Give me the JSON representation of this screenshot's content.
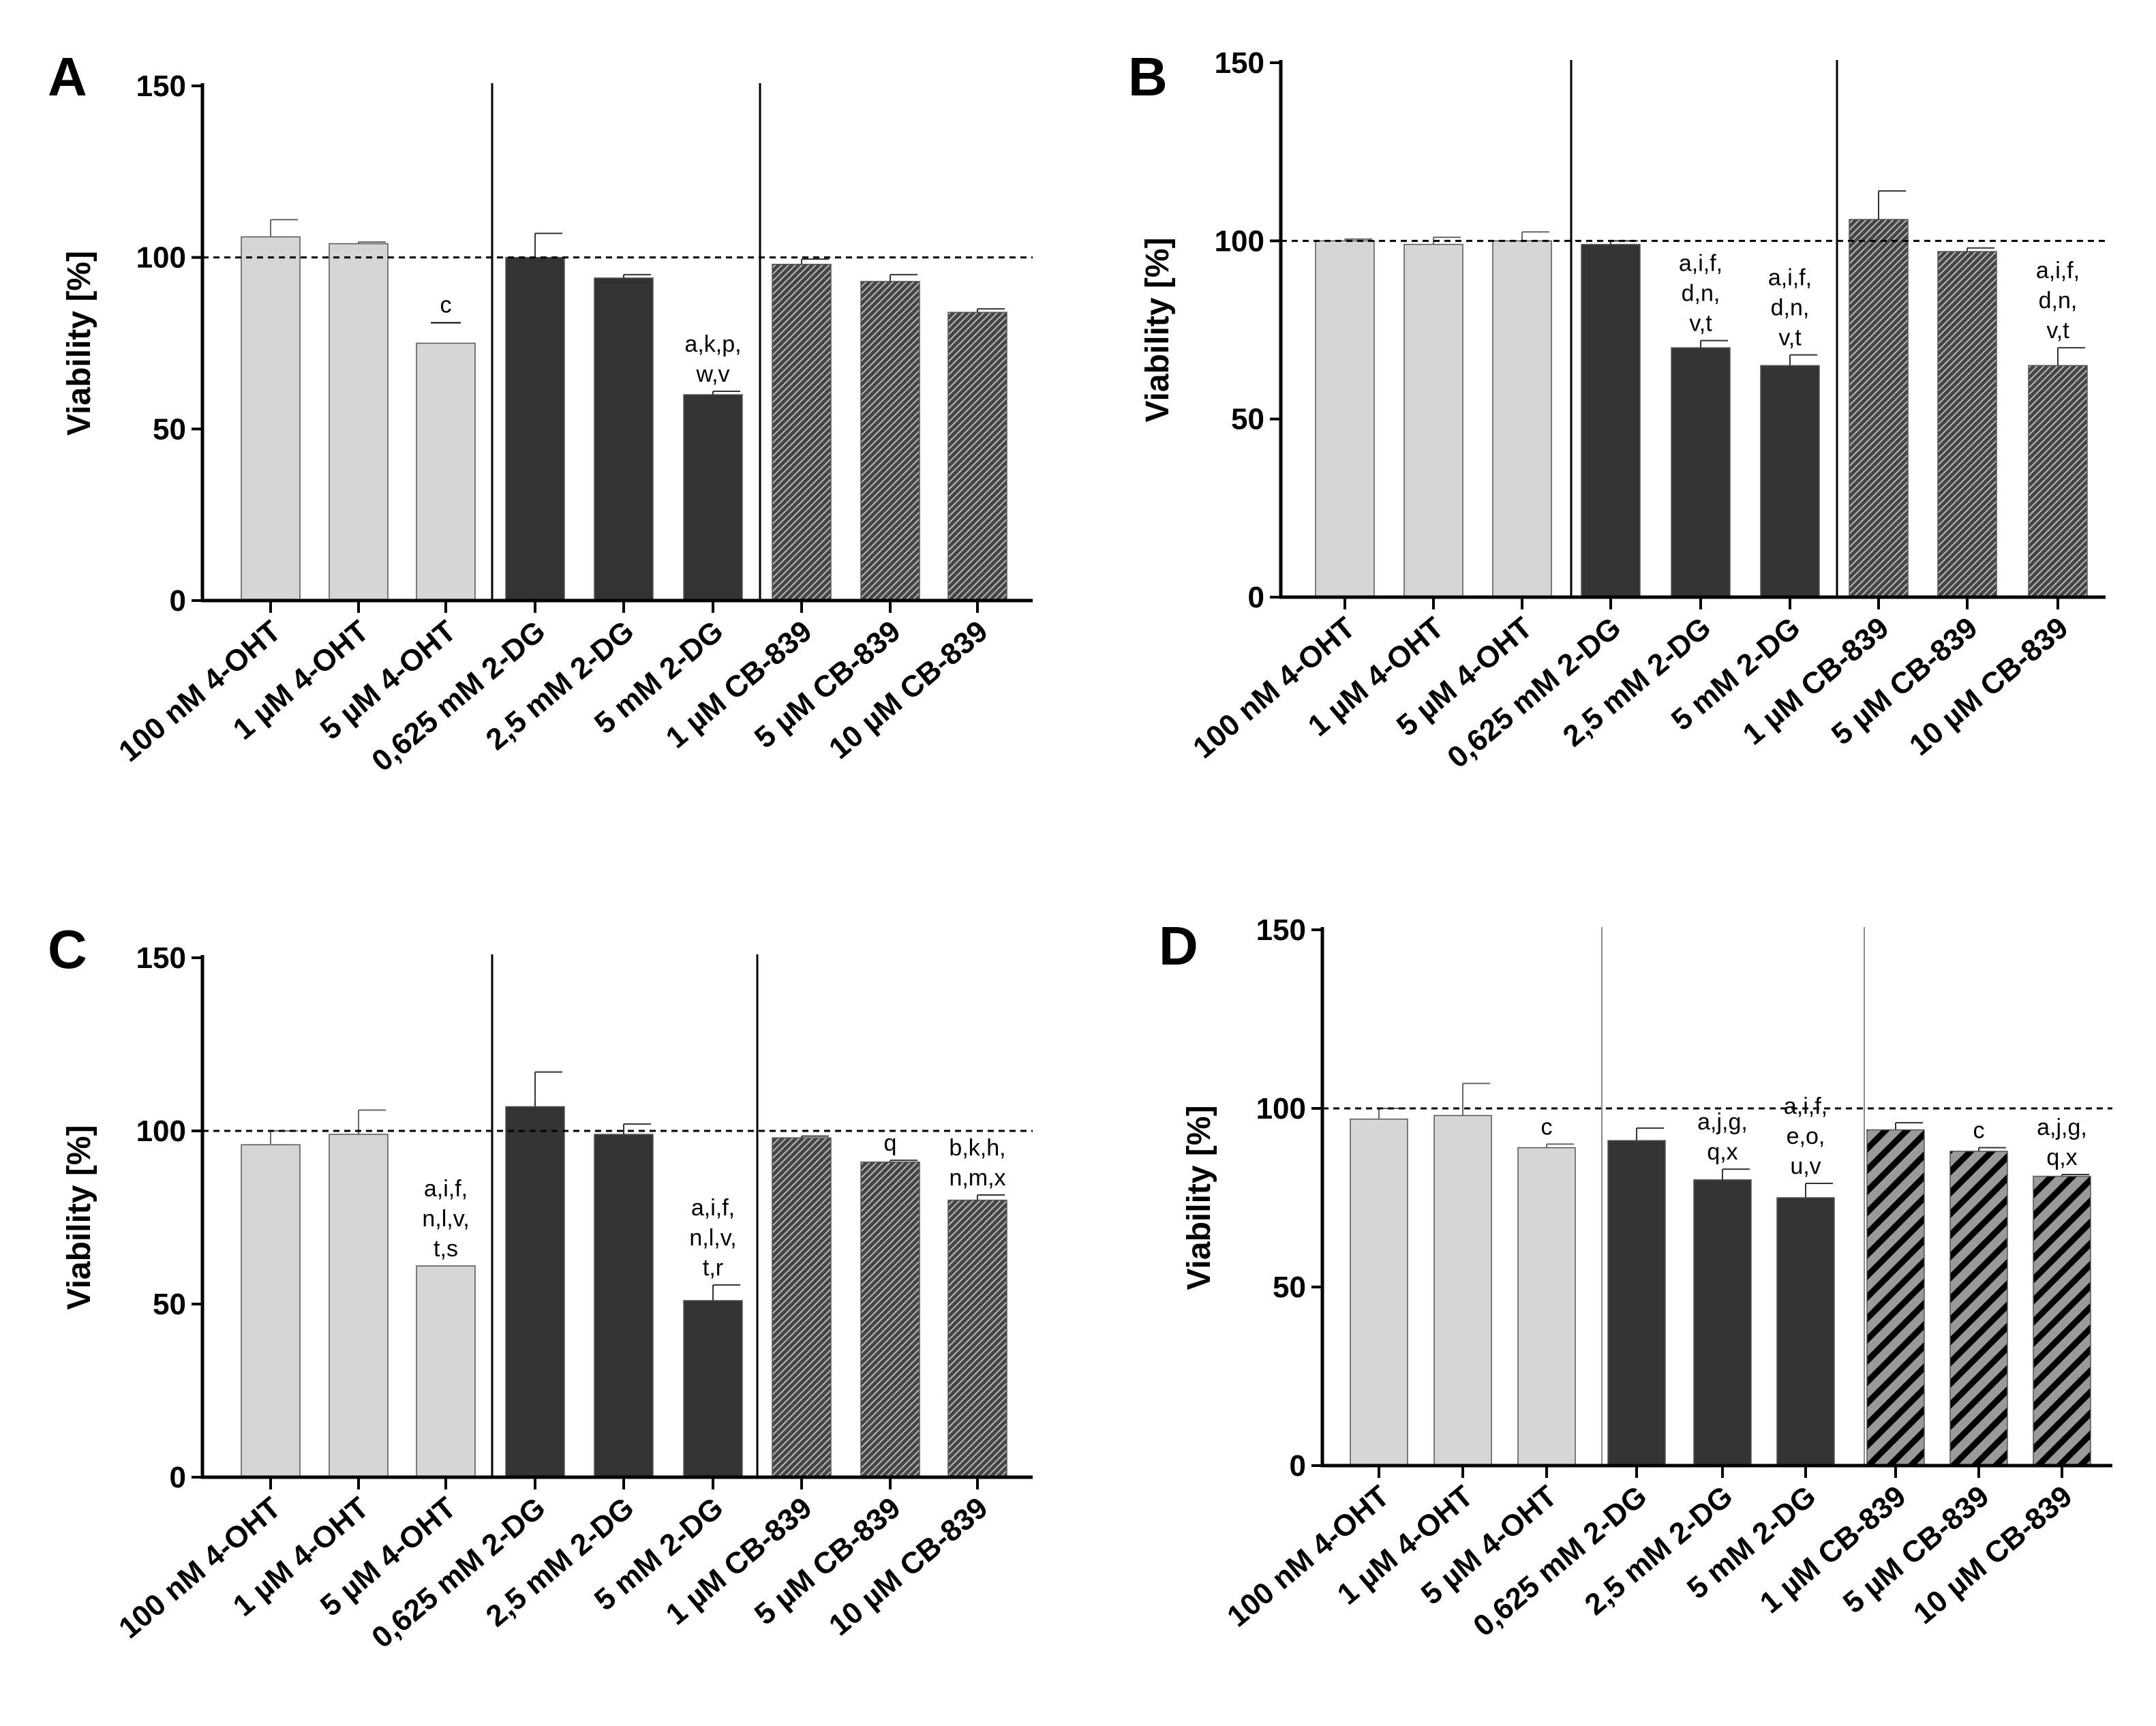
{
  "figure": {
    "colors": {
      "light": "#d6d6d6",
      "dark": "#333333",
      "hatch_bg_bc": "#454545",
      "hatch_line_bc": "#b7b7b7",
      "hatch_bg_d": "#9a9a9a",
      "hatch_line_d": "#000000",
      "axis": "#000000"
    }
  },
  "chart_data": [
    {
      "panel": "A",
      "type": "bar",
      "ylabel": "Viability [%]",
      "ylim": [
        0,
        150
      ],
      "yticks": [
        "0",
        "50",
        "100",
        "150"
      ],
      "reference_line": 100,
      "categories": [
        "100 nM 4-OHT",
        "1 µM 4-OHT",
        "5 µM 4-OHT",
        "0,625 mM 2-DG",
        "2,5 mM 2-DG",
        "5 mM 2-DG",
        "1 µM CB-839",
        "5 µM CB-839",
        "10 µM CB-839"
      ],
      "groups": [
        "4-OHT",
        "4-OHT",
        "4-OHT",
        "2-DG",
        "2-DG",
        "2-DG",
        "CB-839",
        "CB-839",
        "CB-839"
      ],
      "values": [
        106,
        104,
        75,
        100,
        94,
        60,
        98,
        93,
        84
      ],
      "errors": [
        5,
        0.5,
        0,
        7,
        1,
        1,
        1.5,
        2,
        1
      ],
      "annotations": [
        [],
        [],
        [
          "c"
        ],
        [],
        [],
        [
          "a,k,p,",
          "w,v"
        ],
        [],
        [],
        []
      ],
      "annotation_bars": [
        false,
        false,
        true,
        false,
        false,
        false,
        false,
        false,
        false
      ]
    },
    {
      "panel": "B",
      "type": "bar",
      "ylabel": "Viability [%]",
      "ylim": [
        0,
        150
      ],
      "yticks": [
        "0",
        "50",
        "100",
        "150"
      ],
      "reference_line": 100,
      "categories": [
        "100 nM 4-OHT",
        "1 µM 4-OHT",
        "5 µM 4-OHT",
        "0,625 mM 2-DG",
        "2,5 mM 2-DG",
        "5 mM 2-DG",
        "1 µM CB-839",
        "5 µM CB-839",
        "10 µM CB-839"
      ],
      "groups": [
        "4-OHT",
        "4-OHT",
        "4-OHT",
        "2-DG",
        "2-DG",
        "2-DG",
        "CB-839",
        "CB-839",
        "CB-839"
      ],
      "values": [
        100,
        99,
        100,
        99,
        70,
        65,
        106,
        97,
        65
      ],
      "errors": [
        0.5,
        2,
        2.5,
        1,
        2,
        3,
        8,
        1,
        5
      ],
      "annotations": [
        [],
        [],
        [],
        [],
        [
          "a,i,f,",
          "d,n,",
          "v,t"
        ],
        [
          "a,i,f,",
          "d,n,",
          "v,t"
        ],
        [],
        [],
        [
          "a,i,f,",
          "d,n,",
          "v,t"
        ]
      ],
      "annotation_bars": [
        false,
        false,
        false,
        false,
        false,
        false,
        false,
        false,
        false
      ]
    },
    {
      "panel": "C",
      "type": "bar",
      "ylabel": "Viability [%]",
      "ylim": [
        0,
        150
      ],
      "yticks": [
        "0",
        "50",
        "100",
        "150"
      ],
      "reference_line": 100,
      "categories": [
        "100 nM 4-OHT",
        "1 µM 4-OHT",
        "5 µM 4-OHT",
        "0,625 mM 2-DG",
        "2,5 mM 2-DG",
        "5 mM 2-DG",
        "1 µM CB-839",
        "5 µM CB-839",
        "10 µM CB-839"
      ],
      "groups": [
        "4-OHT",
        "4-OHT",
        "4-OHT",
        "2-DG",
        "2-DG",
        "2-DG",
        "CB-839",
        "CB-839",
        "CB-839"
      ],
      "values": [
        96,
        99,
        61,
        107,
        99,
        51,
        98,
        91,
        80
      ],
      "errors": [
        4,
        7,
        0,
        10,
        3,
        4.5,
        0.5,
        0.5,
        1.5
      ],
      "annotations": [
        [],
        [],
        [
          "a,i,f,",
          "n,l,v,",
          "t,s"
        ],
        [],
        [],
        [
          "a,i,f,",
          "n,l,v,",
          "t,r"
        ],
        [],
        [
          "q"
        ],
        [
          "b,k,h,",
          "n,m,x"
        ]
      ],
      "annotation_bars": [
        false,
        false,
        false,
        false,
        false,
        false,
        false,
        false,
        false
      ]
    },
    {
      "panel": "D",
      "type": "bar",
      "ylabel": "Viability [%]",
      "ylim": [
        0,
        150
      ],
      "yticks": [
        "0",
        "50",
        "100",
        "150"
      ],
      "reference_line": 100,
      "categories": [
        "100 nM 4-OHT",
        "1 µM 4-OHT",
        "5 µM 4-OHT",
        "0,625 mM 2-DG",
        "2,5 mM 2-DG",
        "5 mM 2-DG",
        "1 µM CB-839",
        "5 µM CB-839",
        "10 µM CB-839"
      ],
      "groups": [
        "4-OHT",
        "4-OHT",
        "4-OHT",
        "2-DG",
        "2-DG",
        "2-DG",
        "CB-839",
        "CB-839",
        "CB-839"
      ],
      "values": [
        97,
        98,
        89,
        91,
        80,
        75,
        94,
        88,
        81
      ],
      "errors": [
        3,
        9,
        1,
        3.5,
        3,
        4,
        2,
        1,
        0.5
      ],
      "annotations": [
        [],
        [],
        [
          "c"
        ],
        [],
        [
          "a,j,g,",
          "q,x"
        ],
        [
          "a,i,f,",
          "e,o,",
          "u,v"
        ],
        [],
        [
          "c"
        ],
        [
          "a,j,g,",
          "q,x"
        ]
      ],
      "annotation_bars": [
        false,
        false,
        false,
        false,
        false,
        false,
        false,
        false,
        false
      ]
    }
  ]
}
